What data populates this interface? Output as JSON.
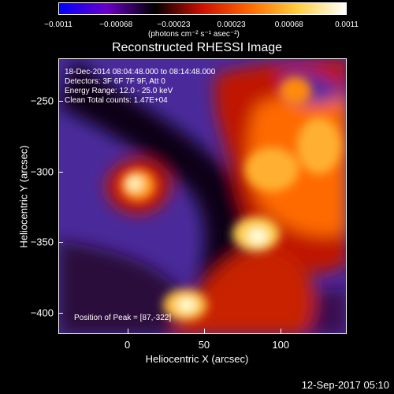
{
  "colorbar": {
    "ticks": [
      "−0.0011",
      "−0.00068",
      "−0.00023",
      "0.00023",
      "0.00068",
      "0.0011"
    ],
    "units": "(photons cm⁻² s⁻¹ asec⁻²)",
    "colors": [
      "#0000ff",
      "#6a00c8",
      "#000000",
      "#d01000",
      "#ff6a00",
      "#ffd040",
      "#ffffff"
    ]
  },
  "title": "Reconstructed RHESSI Image",
  "info": {
    "time": "18-Dec-2014 08:04:48.000 to 08:14:48.000",
    "detectors": "Detectors: 3F 6F 7F 9F, Att 0",
    "energy": "Energy Range: 12.0 - 25.0 keV",
    "method": "Clean     Total counts: 1.47E+04",
    "peak": "Position of Peak = [87,-322]"
  },
  "axes": {
    "x_label": "Heliocentric X (arcsec)",
    "y_label": "Heliocentric Y (arcsec)",
    "x_ticks": [
      "0",
      "50",
      "100"
    ],
    "y_ticks": [
      "−250",
      "−300",
      "−350",
      "−400"
    ],
    "x_tick_values": [
      0,
      50,
      100
    ],
    "y_tick_values": [
      -250,
      -300,
      -350,
      -400
    ],
    "x_range": [
      -45,
      143
    ],
    "y_range": [
      -220,
      -415
    ]
  },
  "timestamp": "12-Sep-2017 05:10"
}
